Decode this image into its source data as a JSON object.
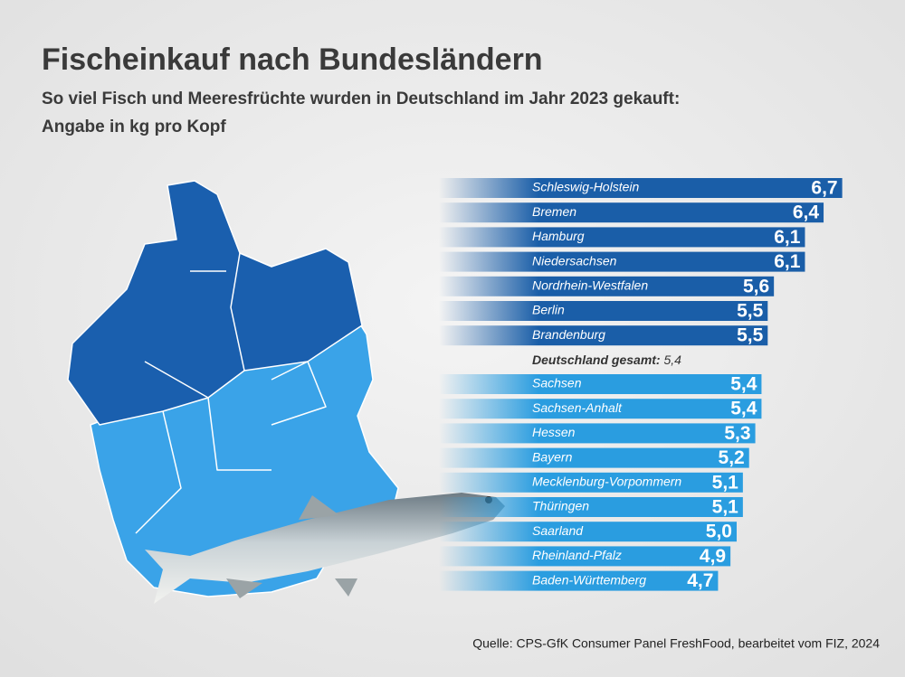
{
  "chart_data": {
    "type": "bar",
    "title": "Fischeinkauf nach Bundesländern",
    "subtitle": [
      "So viel Fisch und Meeresfrüchte wurden in Deutschland im Jahr 2023 gekauft:",
      "Angabe in kg pro Kopf"
    ],
    "categories": [
      "Schleswig-Holstein",
      "Bremen",
      "Hamburg",
      "Niedersachsen",
      "Nordrhein-Westfalen",
      "Berlin",
      "Brandenburg",
      "Sachsen",
      "Sachsen-Anhalt",
      "Hessen",
      "Bayern",
      "Mecklenburg-Vorpommern",
      "Thüringen",
      "Saarland",
      "Rheinland-Pfalz",
      "Baden-Württemberg"
    ],
    "values": [
      6.7,
      6.4,
      6.1,
      6.1,
      5.6,
      5.5,
      5.5,
      5.4,
      5.4,
      5.3,
      5.2,
      5.1,
      5.1,
      5.0,
      4.9,
      4.7
    ],
    "value_labels": [
      "6,7",
      "6,4",
      "6,1",
      "6,1",
      "5,6",
      "5,5",
      "5,5",
      "5,4",
      "5,4",
      "5,3",
      "5,2",
      "5,1",
      "5,1",
      "5,0",
      "4,9",
      "4,7"
    ],
    "colors": [
      "#1a5ea8",
      "#1a5ea8",
      "#1a5ea8",
      "#1a5ea8",
      "#1a5ea8",
      "#1a5ea8",
      "#1a5ea8",
      "#2a9de0",
      "#2a9de0",
      "#2a9de0",
      "#2a9de0",
      "#2a9de0",
      "#2a9de0",
      "#2a9de0",
      "#2a9de0",
      "#2a9de0"
    ],
    "average": {
      "label": "Deutschland gesamt:",
      "value": 5.4,
      "value_label": "5,4"
    },
    "source": "Quelle: CPS-GfK Consumer Panel FreshFood, bearbeitet vom FIZ, 2024"
  }
}
